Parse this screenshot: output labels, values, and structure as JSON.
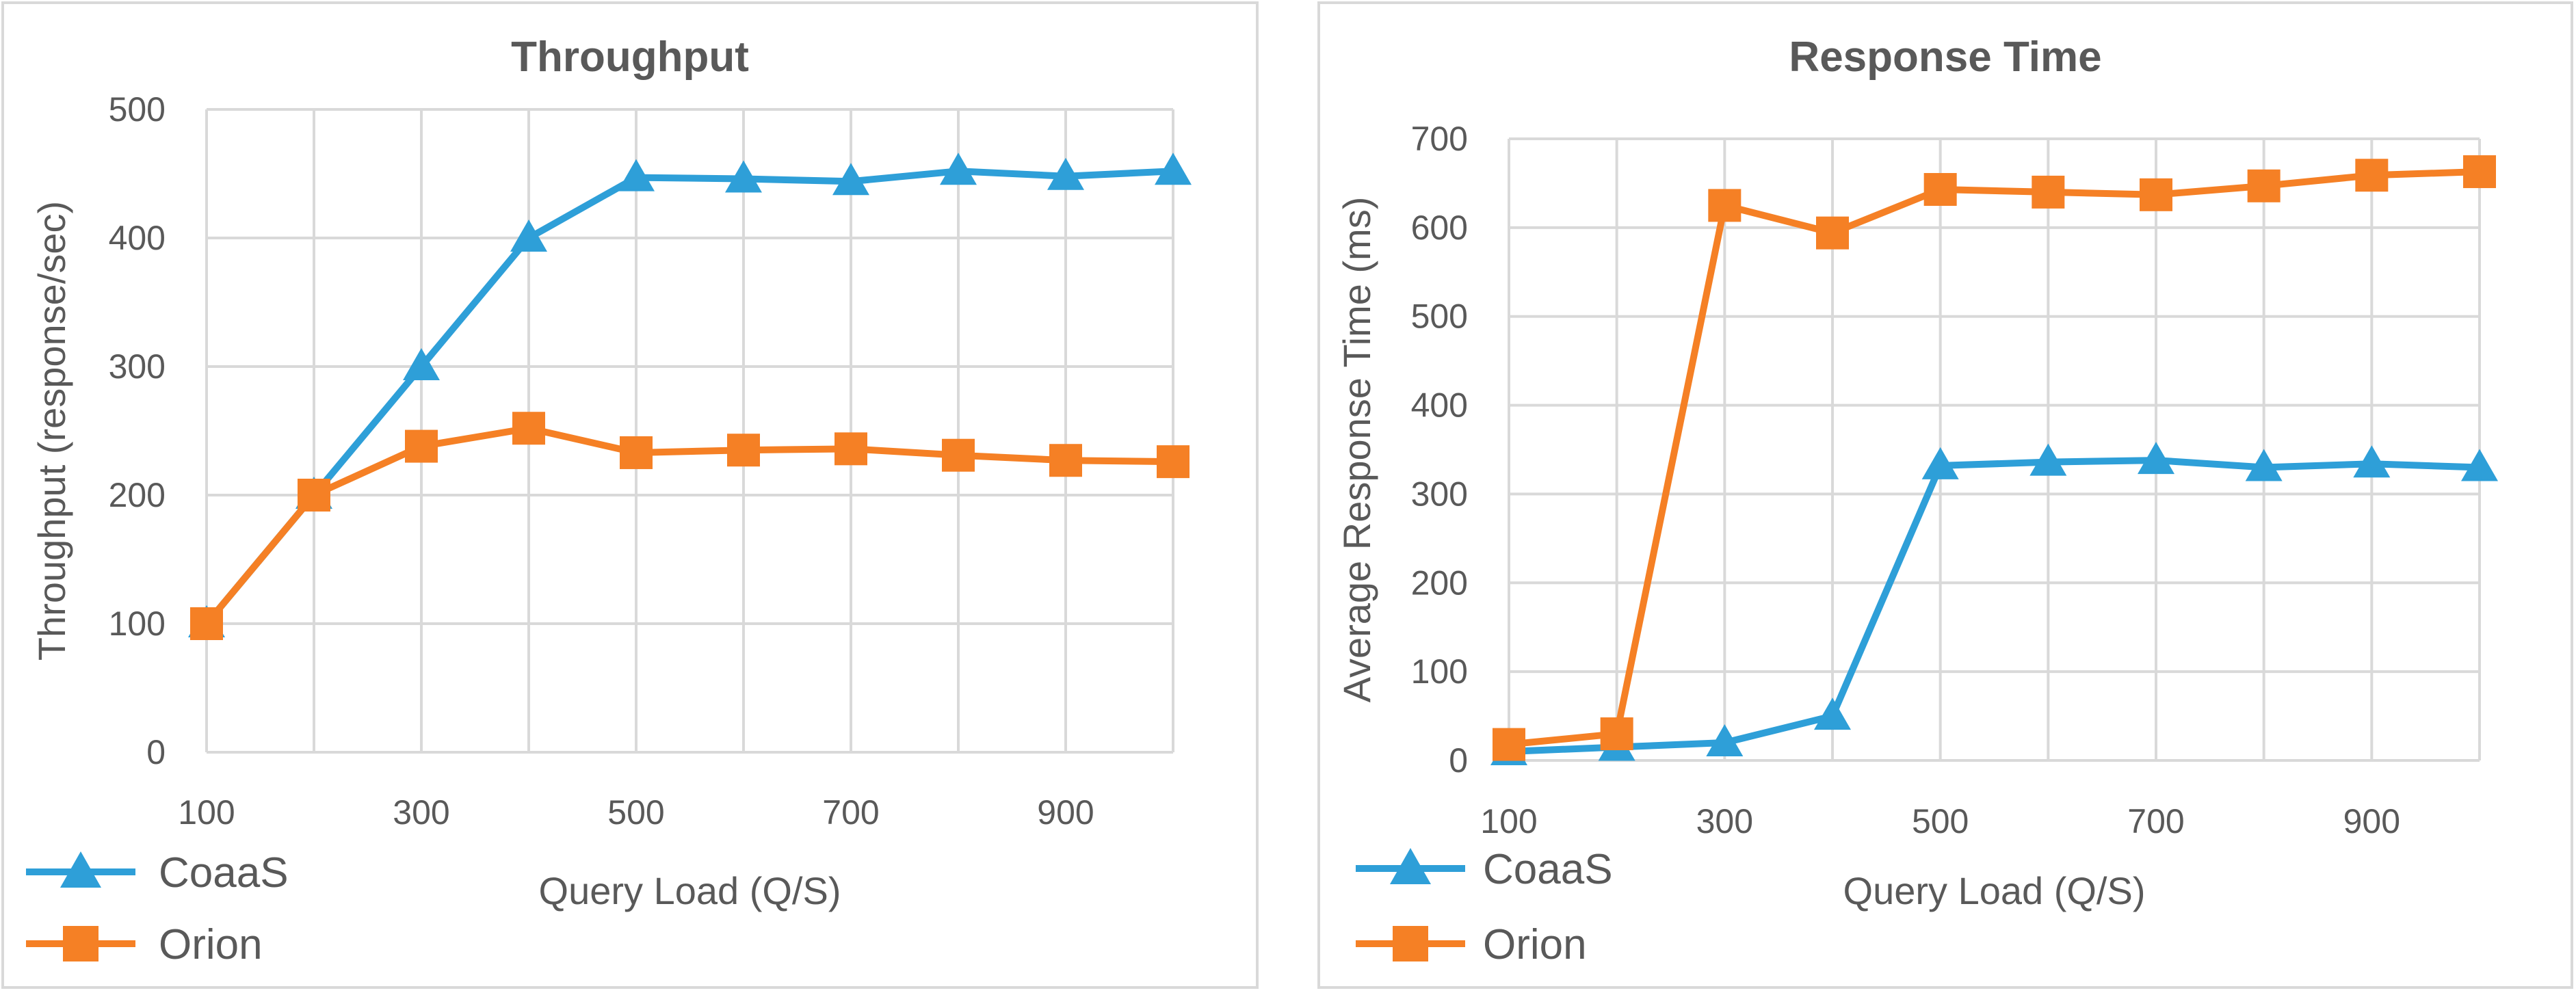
{
  "colors": {
    "coaas": "#2e9fd8",
    "orion": "#f58025",
    "grid": "#d9d9d9",
    "text": "#595959"
  },
  "chart_data": [
    {
      "type": "line",
      "title": "Throughput",
      "xlabel": "Query Load (Q/S)",
      "ylabel": "Throughput (response/sec)",
      "x": [
        100,
        200,
        300,
        400,
        500,
        600,
        700,
        800,
        900,
        1000
      ],
      "xlim": [
        100,
        1000
      ],
      "xticks": [
        100,
        300,
        500,
        700,
        900
      ],
      "ylim": [
        0,
        500
      ],
      "yticks": [
        0,
        100,
        200,
        300,
        400,
        500
      ],
      "grid": true,
      "legend": "bottom-left",
      "series": [
        {
          "name": "CoaaS",
          "marker": "triangle",
          "color": "#2e9fd8",
          "values": [
            100,
            200,
            300,
            400,
            447,
            446,
            444,
            452,
            448,
            452
          ]
        },
        {
          "name": "Orion",
          "marker": "square",
          "color": "#f58025",
          "values": [
            100,
            200,
            238,
            252,
            233,
            235,
            236,
            231,
            227,
            226
          ]
        }
      ]
    },
    {
      "type": "line",
      "title": "Response Time",
      "xlabel": "Query Load (Q/S)",
      "ylabel": "Average Response Time (ms)",
      "x": [
        100,
        200,
        300,
        400,
        500,
        600,
        700,
        800,
        900,
        1000
      ],
      "xlim": [
        100,
        1000
      ],
      "xticks": [
        100,
        300,
        500,
        700,
        900
      ],
      "ylim": [
        0,
        700
      ],
      "yticks": [
        0,
        100,
        200,
        300,
        400,
        500,
        600,
        700
      ],
      "grid": true,
      "legend": "bottom-left",
      "series": [
        {
          "name": "CoaaS",
          "marker": "triangle",
          "color": "#2e9fd8",
          "values": [
            10,
            15,
            20,
            50,
            332,
            336,
            338,
            330,
            334,
            330
          ]
        },
        {
          "name": "Orion",
          "marker": "square",
          "color": "#f58025",
          "values": [
            18,
            30,
            625,
            594,
            643,
            640,
            637,
            647,
            659,
            663
          ]
        }
      ]
    }
  ]
}
